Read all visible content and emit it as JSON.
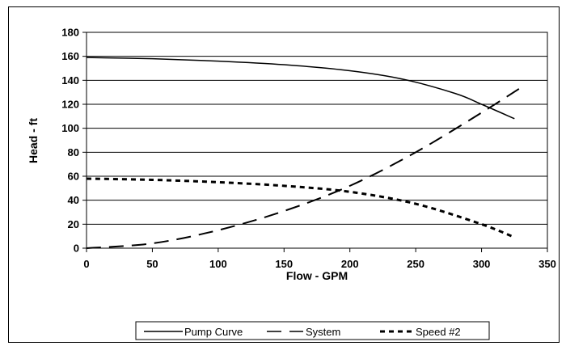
{
  "chart_data": {
    "type": "line",
    "title": "",
    "xlabel": "Flow - GPM",
    "ylabel": "Head - ft",
    "xlim": [
      0,
      350
    ],
    "ylim": [
      0,
      180
    ],
    "xticks": [
      0,
      50,
      100,
      150,
      200,
      250,
      300,
      350
    ],
    "yticks": [
      0,
      20,
      40,
      60,
      80,
      100,
      120,
      140,
      160,
      180
    ],
    "grid": "horizontal",
    "legend_position": "bottom",
    "series": [
      {
        "name": "Pump Curve",
        "style": "solid",
        "x": [
          0,
          50,
          100,
          150,
          200,
          240,
          280,
          300,
          325
        ],
        "y": [
          159,
          158,
          156,
          153,
          148,
          141,
          129,
          120,
          108
        ]
      },
      {
        "name": "System",
        "style": "long-dash",
        "x": [
          0,
          50,
          100,
          150,
          200,
          250,
          300,
          330
        ],
        "y": [
          0,
          4,
          15,
          31,
          52,
          80,
          113,
          134
        ]
      },
      {
        "name": "Speed #2",
        "style": "short-dash",
        "x": [
          0,
          50,
          100,
          150,
          200,
          250,
          300,
          325
        ],
        "y": [
          58,
          57,
          55,
          52,
          47,
          37,
          20,
          9
        ]
      }
    ]
  }
}
